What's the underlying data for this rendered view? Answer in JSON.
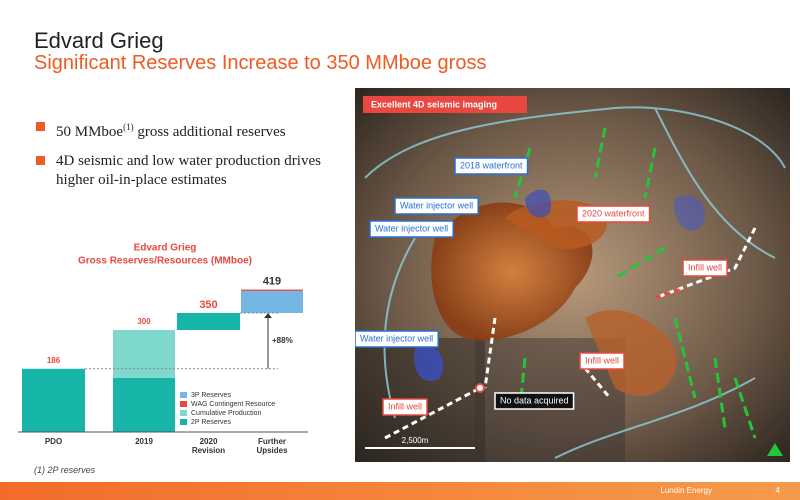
{
  "header": {
    "title": "Edvard Grieg",
    "subtitle": "Significant Reserves Increase to 350 MMboe gross"
  },
  "bullets": [
    [
      "50 MMboe",
      "(1)",
      " gross additional reserves"
    ],
    [
      "4D seismic and low water production drives higher oil-in-place estimates"
    ]
  ],
  "chart_data": {
    "type": "waterfall",
    "title": "Edvard Grieg",
    "subtitle": "Gross Reserves/Resources (MMboe)",
    "categories": [
      "PDO",
      "2019",
      "2020 Revision",
      "Further Upsides"
    ],
    "bar_kind": [
      "total",
      "total",
      "increase",
      "increase"
    ],
    "series": [
      {
        "name": "3P Reserves",
        "color": "#74b6e4",
        "values": [
          null,
          null,
          null,
          65
        ]
      },
      {
        "name": "WAG Contingent Resource",
        "color": "#e8483f",
        "values": [
          null,
          null,
          null,
          4
        ]
      },
      {
        "name": "Cumulative Production",
        "color": "#7fd8cc",
        "values": [
          null,
          141,
          null,
          null
        ]
      },
      {
        "name": "2P Reserves",
        "color": "#17b5a8",
        "values": [
          186,
          159,
          50,
          null
        ]
      }
    ],
    "total_labels": [
      186,
      300,
      350,
      419
    ],
    "ylim": [
      0,
      450
    ],
    "annotation": "+88%"
  },
  "map": {
    "banner": "Excellent 4D seismic imaging",
    "labels": [
      "2018 waterfront",
      "2020 waterfront",
      "Water injector well",
      "Water injector well",
      "Water injector well",
      "Infill well",
      "Infill well",
      "Infill well",
      "No data acquired"
    ],
    "scale": "2,500m"
  },
  "footnote": "(1)  2P reserves",
  "footer": {
    "brand": "Lundin Energy",
    "page": "4"
  }
}
